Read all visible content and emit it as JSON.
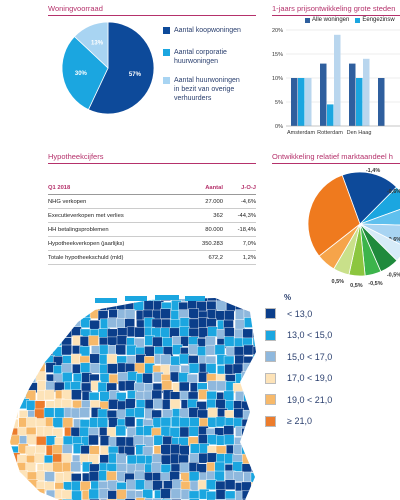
{
  "woningvoorraad": {
    "title": "Woningvoorraad",
    "legend": [
      {
        "label_lines": [
          "Aantal koopwoningen"
        ],
        "color": "#0d4a9a"
      },
      {
        "label_lines": [
          "Aantal corporatie",
          "huurwoningen"
        ],
        "color": "#1ba6e0"
      },
      {
        "label_lines": [
          "Aantal huurwoningen",
          "in bezit van overige",
          "verhuurders"
        ],
        "color": "#a8d4f2"
      }
    ],
    "chart_data": {
      "type": "pie",
      "labels": [
        "Aantal koopwoningen",
        "Aantal corporatie huurwoningen",
        "Aantal huurwoningen in bezit van overige verhuurders"
      ],
      "values": [
        57,
        30,
        13
      ],
      "value_labels": [
        "57%",
        "30%",
        "13%"
      ]
    }
  },
  "prijsontwikkeling": {
    "title": "1-jaars prijsontwikkeling grote steden",
    "legend": [
      "Alle woningen",
      "Eengezinsw"
    ],
    "chart_data": {
      "type": "bar",
      "categories": [
        "Amsterdam",
        "Rotterdam",
        "Den Haag",
        ""
      ],
      "series": [
        {
          "name": "Alle woningen",
          "values": [
            10,
            13,
            13,
            10
          ],
          "color": "#2f5f9e"
        },
        {
          "name": "Eengezinsw",
          "values": [
            10,
            4.5,
            10,
            0
          ],
          "color": "#1ba6e0"
        },
        {
          "name": "",
          "values": [
            10,
            19,
            14,
            0
          ],
          "color": "#b9d6ee"
        }
      ],
      "yticks": [
        "0%",
        "5%",
        "10%",
        "15%",
        "20%"
      ],
      "ylim": [
        0,
        20
      ]
    }
  },
  "hypotheek": {
    "title": "Hypotheekcijfers",
    "header": [
      "Q1 2018",
      "Aantal",
      "J-O-J"
    ],
    "rows": [
      [
        "NHG verkopen",
        "27.000",
        "-4,6%"
      ],
      [
        "Executieverkopen met verlies",
        "362",
        "-44,3%"
      ],
      [
        "HH betalingsproblemen",
        "80.000",
        "-18,4%"
      ],
      [
        "Hypotheekverkopen (jaarlijks)",
        "350.283",
        "7,0%"
      ],
      [
        "Totale hypotheekschuld  (mld)",
        "672,2",
        "1,2%"
      ]
    ]
  },
  "marktaandeel": {
    "title": "Ontwikkeling relatief marktaandeel h",
    "chart_data": {
      "type": "pie",
      "values": [
        18,
        7,
        6,
        7,
        5,
        6,
        5,
        5,
        5,
        6,
        30
      ],
      "value_labels": [
        "-1,4%",
        "-0,6%",
        "",
        "-0,6%",
        "",
        "-0,5%",
        "-0,5%",
        "0,5%",
        "0,5%",
        "",
        ""
      ],
      "colors": [
        "#0d4a9a",
        "#1ba6e0",
        "#5fc0ee",
        "#a8d4f2",
        "#d6ebf8",
        "#1f8a3c",
        "#3cb44b",
        "#8cc63f",
        "#c9e08a",
        "#f6a44a",
        "#ef7a1e"
      ]
    }
  },
  "map": {
    "legend_title": "%",
    "legend": [
      {
        "label": "< 13,0",
        "color": "#0b3e8a"
      },
      {
        "label": "13,0 < 15,0",
        "color": "#1ba6e0"
      },
      {
        "label": "15,0 < 17,0",
        "color": "#8fb8dd"
      },
      {
        "label": "17,0 < 19,0",
        "color": "#fde3b8"
      },
      {
        "label": "19,0 < 21,0",
        "color": "#f7b96a"
      },
      {
        "label": "≥ 21,0",
        "color": "#ec7c2c"
      }
    ]
  }
}
